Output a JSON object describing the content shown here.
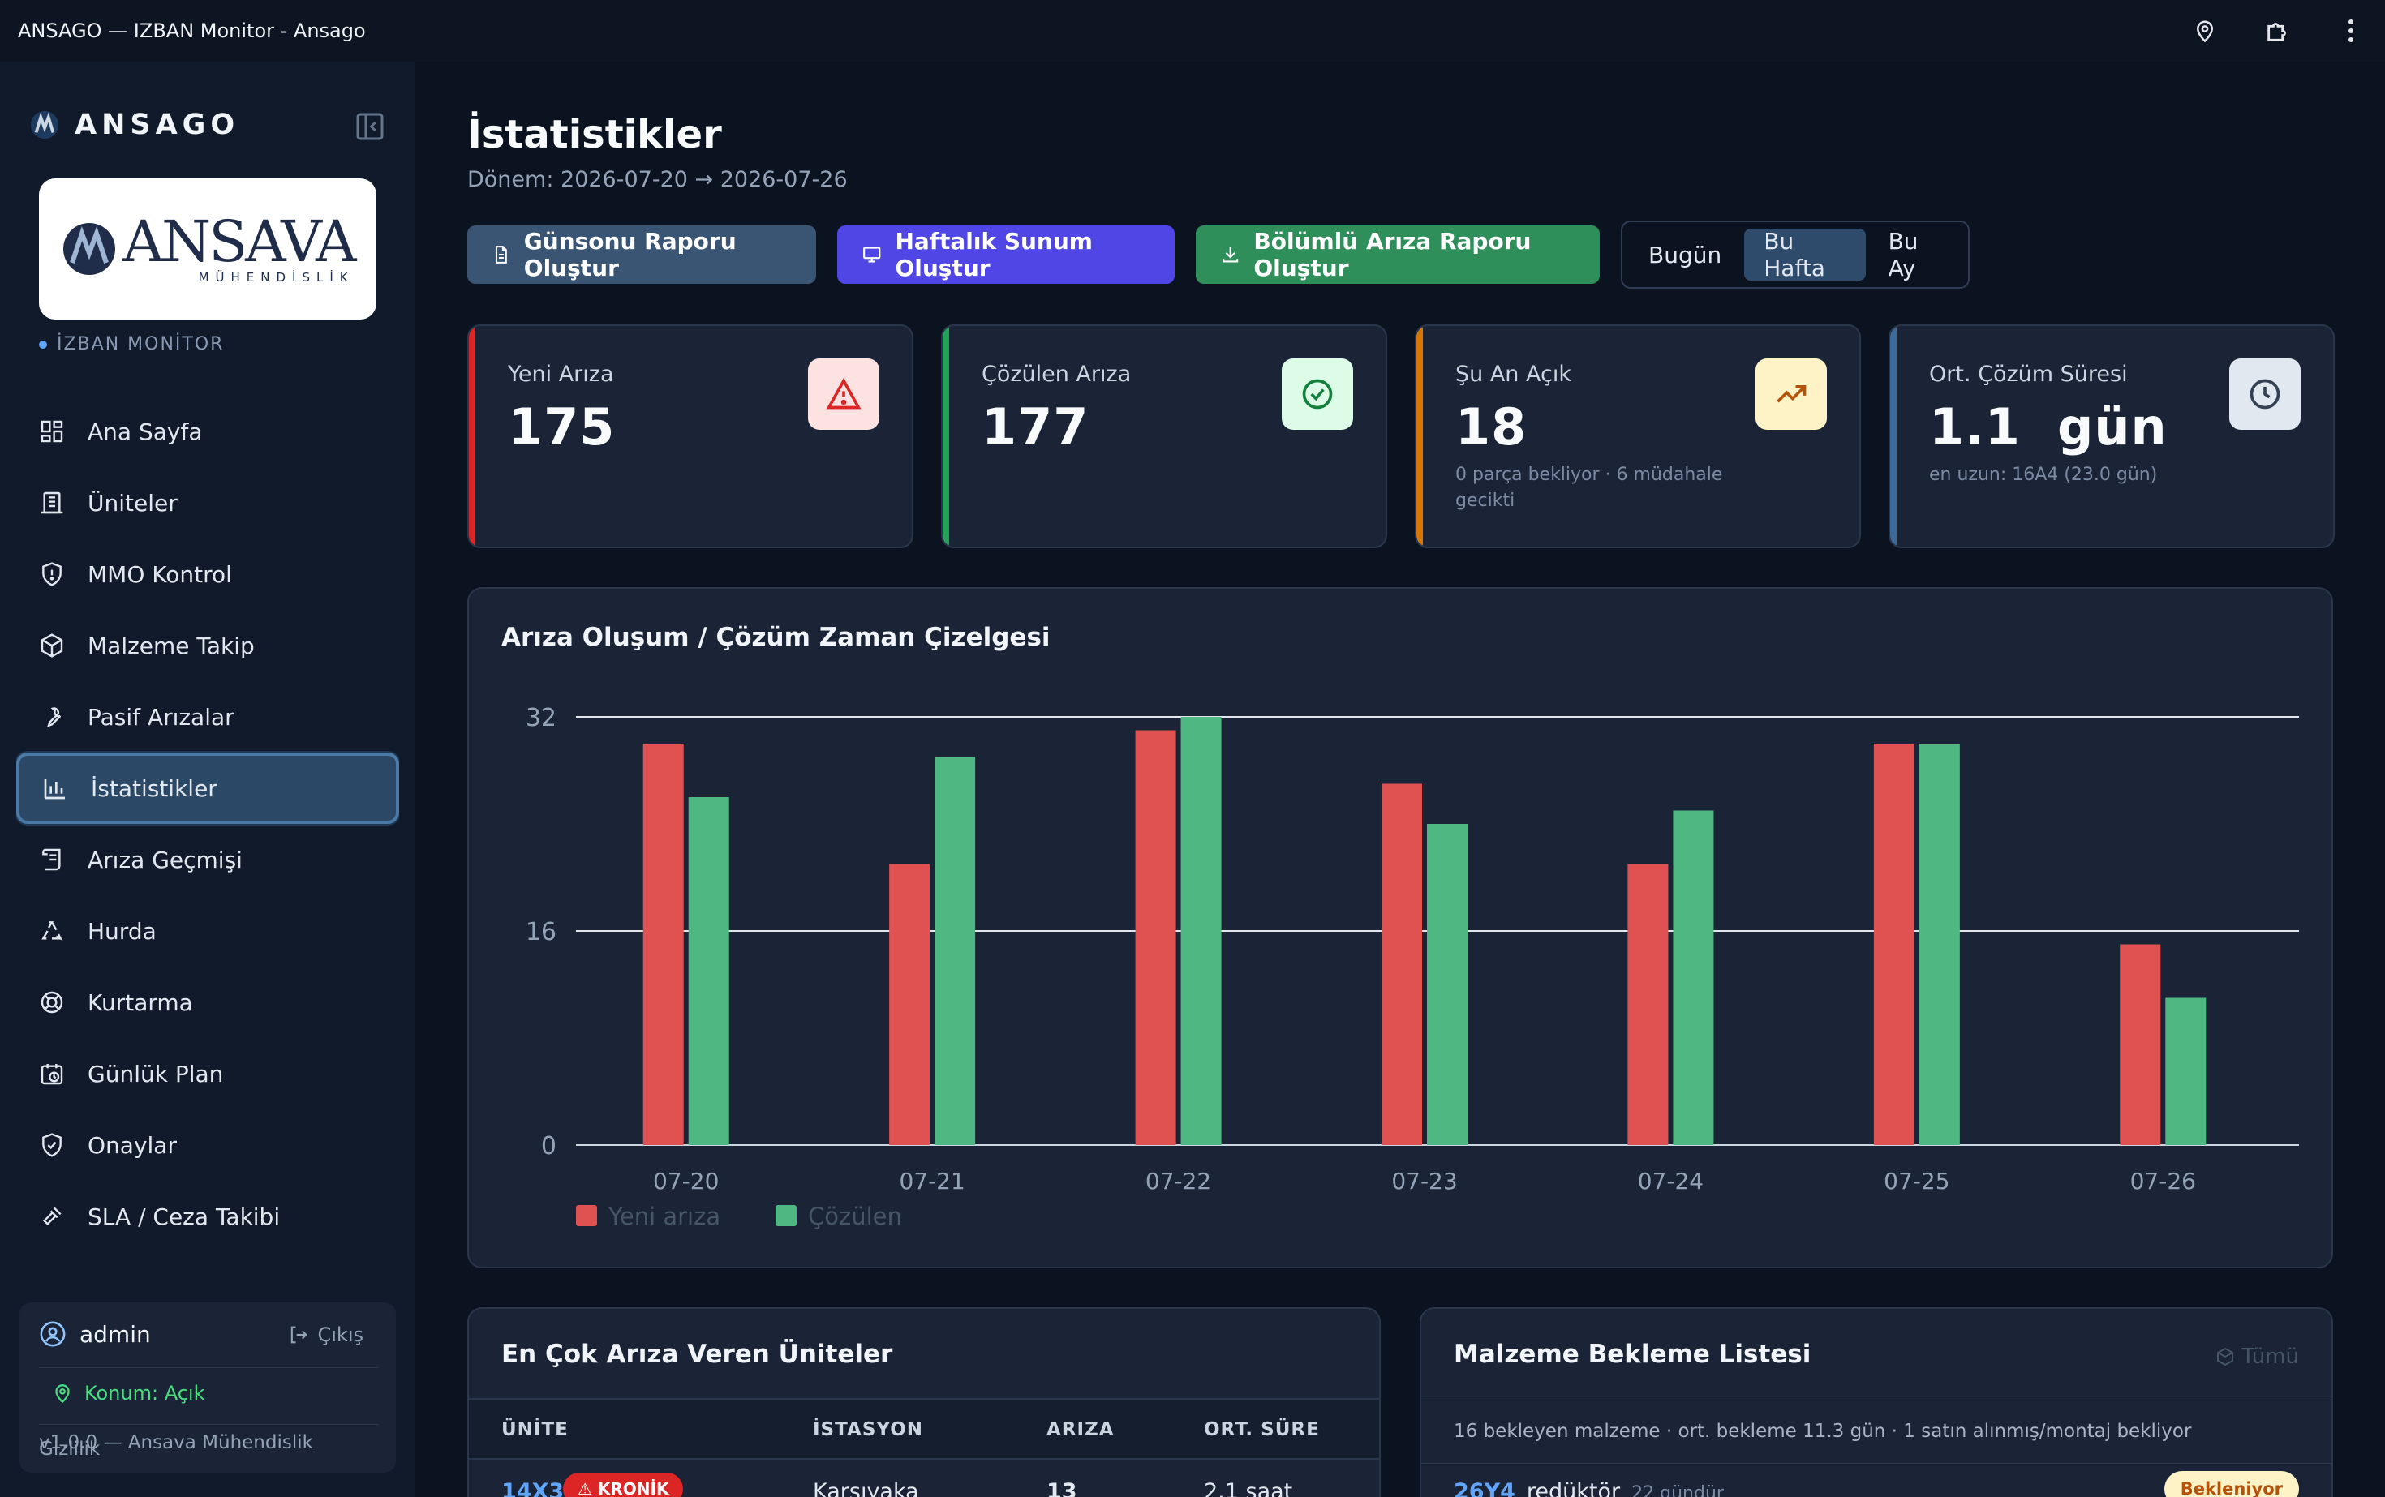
{
  "window": {
    "title": "ANSAGO — IZBAN Monitor - Ansago"
  },
  "brand": {
    "name": "ANSAGO",
    "logo_word": "ANSAVA",
    "logo_sub": "MÜHENDİSLİK",
    "monitor_label": "İZBAN MONİTOR"
  },
  "nav": {
    "items": [
      {
        "label": "Ana Sayfa",
        "icon": "dashboard-icon"
      },
      {
        "label": "Üniteler",
        "icon": "building-icon"
      },
      {
        "label": "MMO Kontrol",
        "icon": "shield-alert-icon"
      },
      {
        "label": "Malzeme Takip",
        "icon": "package-icon"
      },
      {
        "label": "Pasif Arızalar",
        "icon": "wrench-icon"
      },
      {
        "label": "İstatistikler",
        "icon": "bar-chart-icon",
        "active": true
      },
      {
        "label": "Arıza Geçmişi",
        "icon": "scroll-icon"
      },
      {
        "label": "Hurda",
        "icon": "recycle-icon"
      },
      {
        "label": "Kurtarma",
        "icon": "lifebuoy-icon"
      },
      {
        "label": "Günlük Plan",
        "icon": "calendar-clock-icon"
      },
      {
        "label": "Onaylar",
        "icon": "shield-check-icon"
      },
      {
        "label": "SLA / Ceza Takibi",
        "icon": "gavel-icon"
      }
    ]
  },
  "user": {
    "name": "admin",
    "logout": "Çıkış",
    "location": "Konum: Açık",
    "privacy": "Gizlilik"
  },
  "footer": {
    "version": "v1.0.0 — Ansava Mühendislik"
  },
  "page": {
    "title": "İstatistikler",
    "period": "Dönem: 2026-07-20 → 2026-07-26"
  },
  "actions": {
    "daily_report": "Günsonu Raporu Oluştur",
    "weekly_presentation": "Haftalık Sunum Oluştur",
    "sectional_report": "Bölümlü Arıza Raporu Oluştur",
    "range": {
      "options": [
        "Bugün",
        "Bu Hafta",
        "Bu Ay"
      ],
      "selected": "Bu Hafta"
    }
  },
  "stats": [
    {
      "label": "Yeni Arıza",
      "value": "175",
      "sub": "",
      "color": "#dc2626"
    },
    {
      "label": "Çözülen Arıza",
      "value": "177",
      "sub": "",
      "color": "#22a35a"
    },
    {
      "label": "Şu An Açık",
      "value": "18",
      "sub": "0 parça bekliyor · 6 müdahale gecikti",
      "color": "#d97706"
    },
    {
      "label": "Ort. Çözüm Süresi",
      "value": "1.1  gün",
      "sub": "en uzun: 16A4 (23.0 gün)",
      "color": "#3b6a9a"
    }
  ],
  "chart_data": {
    "type": "bar",
    "title": "Arıza Oluşum / Çözüm Zaman Çizelgesi",
    "categories": [
      "07-20",
      "07-21",
      "07-22",
      "07-23",
      "07-24",
      "07-25",
      "07-26"
    ],
    "series": [
      {
        "name": "Yeni arıza",
        "color": "#e05252",
        "values": [
          30,
          21,
          31,
          27,
          21,
          30,
          15
        ]
      },
      {
        "name": "Çözülen",
        "color": "#4fb882",
        "values": [
          26,
          29,
          32,
          24,
          25,
          30,
          11
        ]
      }
    ],
    "yticks": [
      0,
      16,
      32
    ],
    "ylim": [
      0,
      32
    ],
    "grid": true,
    "legend": "bottom-left"
  },
  "top_units": {
    "title": "En Çok Arıza Veren Üniteler",
    "columns": [
      "ÜNİTE",
      "İSTASYON",
      "ARIZA",
      "ORT. SÜRE"
    ],
    "rows": [
      {
        "unit": "14X3",
        "tag": "⚠ KRONİK",
        "station": "Karşıyaka",
        "count": "13",
        "avg": "2.1 saat"
      }
    ]
  },
  "materials": {
    "title": "Malzeme Bekleme Listesi",
    "all_link": "Tümü",
    "info": "16 bekleyen malzeme · ort. bekleme 11.3 gün · 1 satın alınmış/montaj bekliyor",
    "rows": [
      {
        "unit": "26Y4",
        "item": "redüktör",
        "age": "22 gündür",
        "status": "Bekleniyor"
      }
    ]
  }
}
